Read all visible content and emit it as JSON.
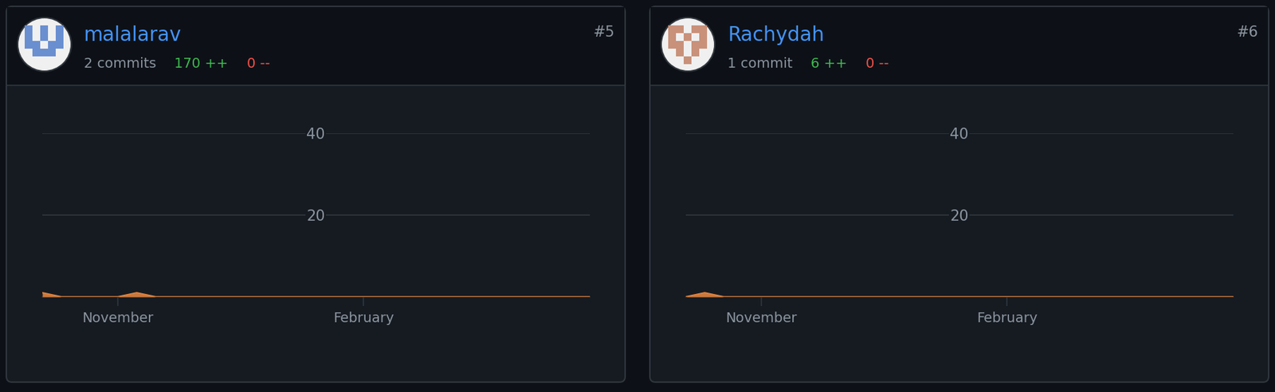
{
  "chart_data": [
    {
      "type": "area",
      "title": "malalarav",
      "subtitle": "2 commits",
      "annotations": [
        {
          "text": "170 ++",
          "color": "#3fb950"
        },
        {
          "text": "0 --",
          "color": "#f85149"
        },
        {
          "text": "#5",
          "color": "#8b949e"
        }
      ],
      "categories": [
        null,
        null,
        null,
        null,
        "November",
        null,
        null,
        null,
        null,
        null,
        null,
        null,
        null,
        null,
        null,
        null,
        null,
        "February",
        null,
        null,
        null,
        null,
        null,
        null,
        null,
        null,
        null,
        null,
        null,
        null
      ],
      "values": [
        1,
        0,
        0,
        0,
        0,
        1,
        0,
        0,
        0,
        0,
        0,
        0,
        0,
        0,
        0,
        0,
        0,
        0,
        0,
        0,
        0,
        0,
        0,
        0,
        0,
        0,
        0,
        0,
        0,
        0
      ],
      "color": "#e0823d",
      "ylim": [
        0,
        40
      ],
      "yticks": [
        20,
        40
      ],
      "grid": true
    },
    {
      "type": "area",
      "title": "Rachydah",
      "subtitle": "1 commit",
      "annotations": [
        {
          "text": "6 ++",
          "color": "#3fb950"
        },
        {
          "text": "0 --",
          "color": "#f85149"
        },
        {
          "text": "#6",
          "color": "#8b949e"
        }
      ],
      "categories": [
        null,
        null,
        null,
        null,
        "November",
        null,
        null,
        null,
        null,
        null,
        null,
        null,
        null,
        null,
        null,
        null,
        null,
        "February",
        null,
        null,
        null,
        null,
        null,
        null,
        null,
        null,
        null,
        null,
        null,
        null
      ],
      "values": [
        0,
        1,
        0,
        0,
        0,
        0,
        0,
        0,
        0,
        0,
        0,
        0,
        0,
        0,
        0,
        0,
        0,
        0,
        0,
        0,
        0,
        0,
        0,
        0,
        0,
        0,
        0,
        0,
        0,
        0
      ],
      "color": "#e0823d",
      "ylim": [
        0,
        40
      ],
      "yticks": [
        20,
        40
      ],
      "grid": true
    }
  ]
}
